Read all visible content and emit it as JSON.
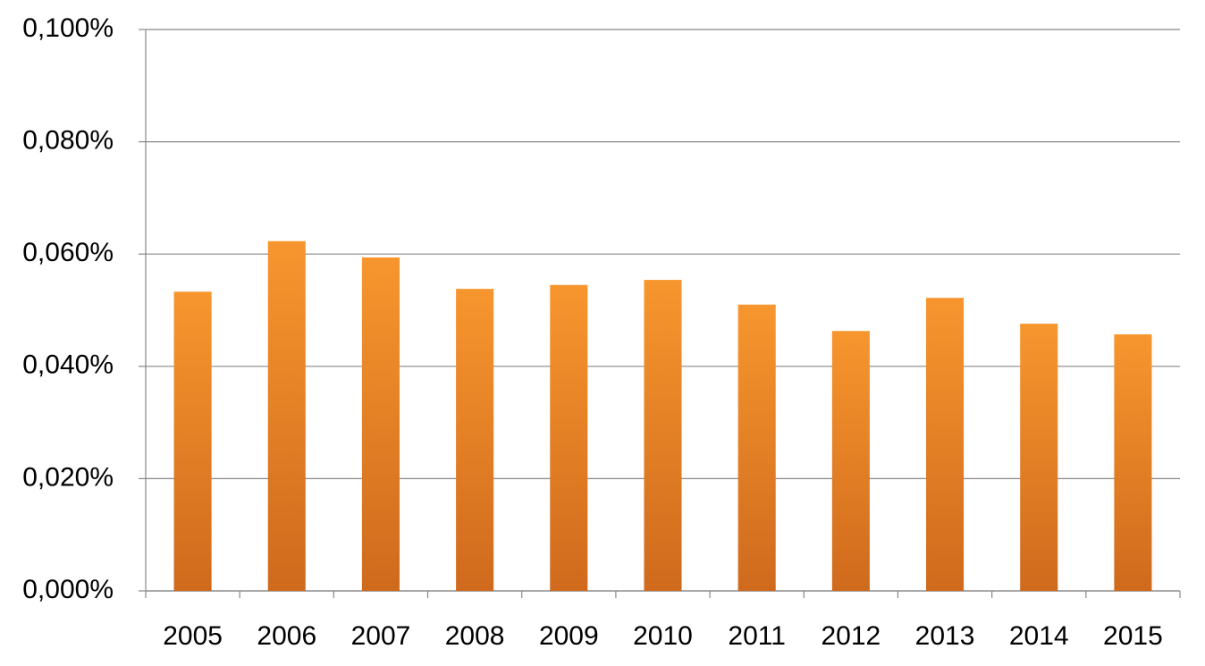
{
  "chart_data": {
    "type": "bar",
    "categories": [
      "2005",
      "2006",
      "2007",
      "2008",
      "2009",
      "2010",
      "2011",
      "2012",
      "2013",
      "2014",
      "2015"
    ],
    "values": [
      0.0533,
      0.0623,
      0.0594,
      0.0538,
      0.0545,
      0.0554,
      0.051,
      0.0463,
      0.0522,
      0.0476,
      0.0457
    ],
    "color": "#f7962e",
    "ylim": [
      0,
      0.1
    ],
    "yticks": [
      {
        "value": 0,
        "label": "0,000%"
      },
      {
        "value": 0.02,
        "label": "0,020%"
      },
      {
        "value": 0.04,
        "label": "0,040%"
      },
      {
        "value": 0.06,
        "label": "0,060%"
      },
      {
        "value": 0.08,
        "label": "0,080%"
      },
      {
        "value": 0.1,
        "label": "0,100%"
      }
    ],
    "grid": true
  }
}
